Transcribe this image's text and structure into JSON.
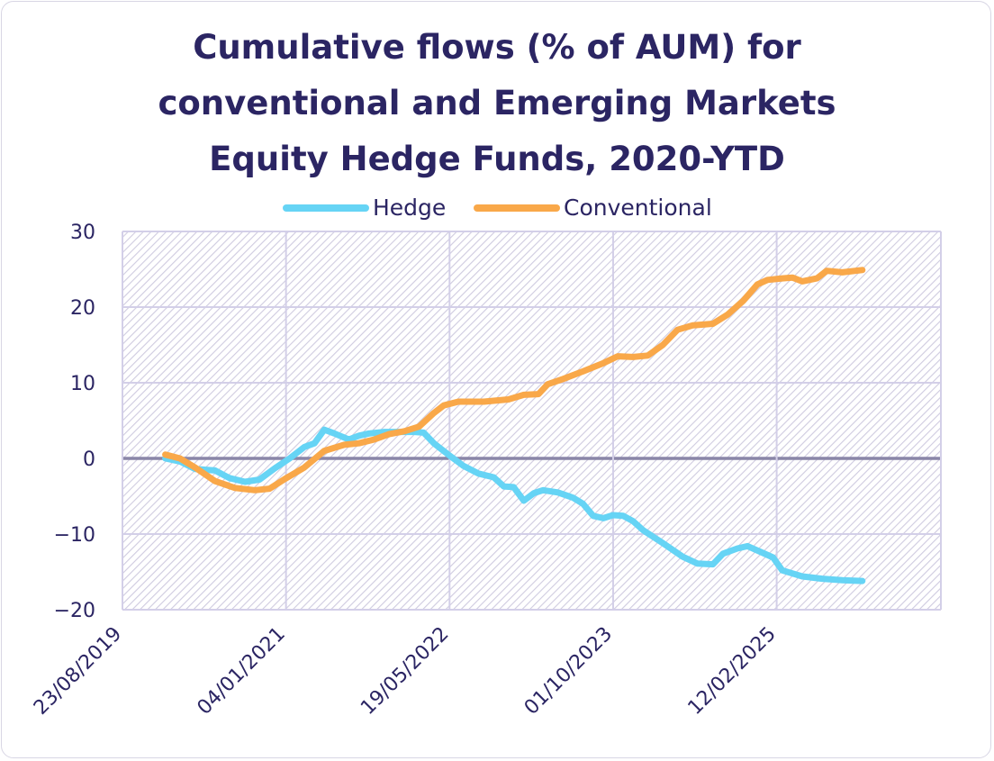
{
  "chart_data": {
    "type": "line",
    "title_lines": [
      "Cumulative flows (% of AUM) for",
      "conventional and Emerging Markets",
      "Equity Hedge Funds, 2020-YTD"
    ],
    "xlabel": "",
    "ylabel": "",
    "x_axis": {
      "type": "date",
      "range": [
        "2019-08-23",
        "2026-06-29"
      ],
      "tick_labels": [
        "23/08/2019",
        "04/01/2021",
        "19/05/2022",
        "01/10/2023",
        "12/02/2025"
      ],
      "tick_dates": [
        "2019-08-23",
        "2021-01-04",
        "2022-05-19",
        "2023-10-01",
        "2025-02-12"
      ]
    },
    "y_axis": {
      "range": [
        -20,
        30
      ],
      "ticks": [
        30,
        20,
        10,
        0,
        -10,
        -20
      ],
      "tick_labels": [
        "30",
        "20",
        "10",
        "0",
        "−10",
        "−20"
      ]
    },
    "grid": true,
    "legend_position": "top",
    "colors": {
      "hedge": "#66d4f5",
      "conventional": "#f9a849",
      "zero_line": "#8a86a8",
      "grid": "#d3cfe8",
      "text": "#2b2563"
    },
    "series": [
      {
        "name": "Hedge",
        "points": [
          [
            "2020-01-01",
            0.0
          ],
          [
            "2020-02-15",
            -0.4
          ],
          [
            "2020-04-01",
            -1.4
          ],
          [
            "2020-06-01",
            -1.6
          ],
          [
            "2020-07-15",
            -2.6
          ],
          [
            "2020-09-01",
            -3.1
          ],
          [
            "2020-10-15",
            -2.8
          ],
          [
            "2020-12-01",
            -1.3
          ],
          [
            "2021-01-15",
            0.0
          ],
          [
            "2021-03-01",
            1.5
          ],
          [
            "2021-04-01",
            2.0
          ],
          [
            "2021-05-01",
            3.8
          ],
          [
            "2021-06-01",
            3.3
          ],
          [
            "2021-07-15",
            2.5
          ],
          [
            "2021-08-15",
            3.0
          ],
          [
            "2021-09-15",
            3.3
          ],
          [
            "2021-11-01",
            3.5
          ],
          [
            "2021-12-15",
            3.5
          ],
          [
            "2022-02-01",
            3.5
          ],
          [
            "2022-03-01",
            3.4
          ],
          [
            "2022-04-01",
            2.0
          ],
          [
            "2022-05-15",
            0.5
          ],
          [
            "2022-07-01",
            -1.0
          ],
          [
            "2022-08-15",
            -2.0
          ],
          [
            "2022-10-01",
            -2.5
          ],
          [
            "2022-11-01",
            -3.7
          ],
          [
            "2022-12-01",
            -3.8
          ],
          [
            "2023-01-01",
            -5.6
          ],
          [
            "2023-02-01",
            -4.6
          ],
          [
            "2023-03-01",
            -4.2
          ],
          [
            "2023-04-15",
            -4.5
          ],
          [
            "2023-06-01",
            -5.2
          ],
          [
            "2023-07-01",
            -6.0
          ],
          [
            "2023-08-01",
            -7.6
          ],
          [
            "2023-09-01",
            -7.9
          ],
          [
            "2023-10-01",
            -7.5
          ],
          [
            "2023-11-01",
            -7.6
          ],
          [
            "2023-12-01",
            -8.3
          ],
          [
            "2024-01-01",
            -9.5
          ],
          [
            "2024-03-01",
            -11.2
          ],
          [
            "2024-05-01",
            -13.0
          ],
          [
            "2024-06-15",
            -13.9
          ],
          [
            "2024-08-01",
            -14.0
          ],
          [
            "2024-09-01",
            -12.6
          ],
          [
            "2024-10-15",
            -11.9
          ],
          [
            "2024-11-15",
            -11.6
          ],
          [
            "2025-01-01",
            -12.5
          ],
          [
            "2025-02-01",
            -13.1
          ],
          [
            "2025-03-01",
            -14.8
          ],
          [
            "2025-05-01",
            -15.6
          ],
          [
            "2025-07-01",
            -15.9
          ],
          [
            "2025-09-01",
            -16.1
          ],
          [
            "2025-11-01",
            -16.2
          ]
        ]
      },
      {
        "name": "Conventional",
        "points": [
          [
            "2020-01-01",
            0.5
          ],
          [
            "2020-02-15",
            0.0
          ],
          [
            "2020-04-01",
            -1.2
          ],
          [
            "2020-06-01",
            -3.0
          ],
          [
            "2020-08-01",
            -3.9
          ],
          [
            "2020-10-01",
            -4.2
          ],
          [
            "2020-11-15",
            -4.0
          ],
          [
            "2021-01-01",
            -2.7
          ],
          [
            "2021-03-01",
            -1.2
          ],
          [
            "2021-05-01",
            1.0
          ],
          [
            "2021-07-01",
            1.8
          ],
          [
            "2021-08-15",
            2.0
          ],
          [
            "2021-10-01",
            2.5
          ],
          [
            "2021-11-15",
            3.2
          ],
          [
            "2022-01-01",
            3.6
          ],
          [
            "2022-02-15",
            4.2
          ],
          [
            "2022-04-01",
            6.0
          ],
          [
            "2022-05-01",
            7.0
          ],
          [
            "2022-06-15",
            7.5
          ],
          [
            "2022-09-01",
            7.5
          ],
          [
            "2022-11-15",
            7.8
          ],
          [
            "2023-01-01",
            8.4
          ],
          [
            "2023-02-15",
            8.5
          ],
          [
            "2023-03-15",
            9.8
          ],
          [
            "2023-05-01",
            10.5
          ],
          [
            "2023-07-01",
            11.5
          ],
          [
            "2023-09-01",
            12.6
          ],
          [
            "2023-10-15",
            13.5
          ],
          [
            "2023-12-01",
            13.4
          ],
          [
            "2024-01-15",
            13.6
          ],
          [
            "2024-03-01",
            15.0
          ],
          [
            "2024-04-15",
            17.0
          ],
          [
            "2024-06-01",
            17.6
          ],
          [
            "2024-08-01",
            17.8
          ],
          [
            "2024-09-15",
            19.0
          ],
          [
            "2024-11-01",
            20.8
          ],
          [
            "2024-12-15",
            23.0
          ],
          [
            "2025-01-15",
            23.6
          ],
          [
            "2025-03-01",
            23.8
          ],
          [
            "2025-04-01",
            23.9
          ],
          [
            "2025-05-01",
            23.4
          ],
          [
            "2025-06-15",
            23.8
          ],
          [
            "2025-07-15",
            24.8
          ],
          [
            "2025-09-01",
            24.6
          ],
          [
            "2025-11-01",
            24.9
          ]
        ]
      }
    ]
  }
}
